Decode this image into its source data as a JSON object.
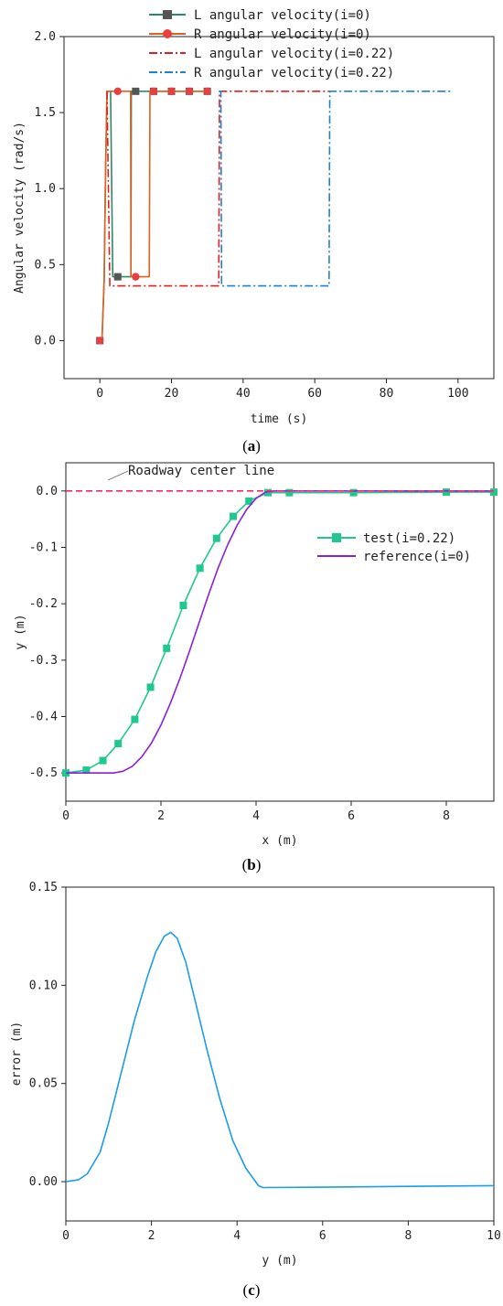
{
  "chart_data": [
    {
      "type": "line",
      "caption": "(a)",
      "xlabel": "time (s)",
      "ylabel": "Angular velocity (rad/s)",
      "xlim": [
        -10,
        110
      ],
      "ylim": [
        -0.25,
        2.0
      ],
      "xticks": [
        0,
        20,
        40,
        60,
        80,
        100
      ],
      "yticks": [
        0.0,
        0.5,
        1.0,
        1.5,
        2.0
      ],
      "ytick_labels": [
        "0.0",
        "0.5",
        "1.0",
        "1.5",
        "2.0"
      ],
      "legend_position": "top-center",
      "series": [
        {
          "name": "L angular velocity(i=0)",
          "color": "#2a8a6a",
          "dash": "solid",
          "marker": "square",
          "marker_color": "#555555",
          "x": [
            0,
            0.6,
            1.2,
            1.6,
            2.0,
            2.6,
            3.0,
            3.6,
            4.5,
            8.7,
            8.8,
            9.2,
            13,
            14.2,
            14.3,
            30
          ],
          "y": [
            0,
            0,
            0.4,
            1.1,
            1.64,
            1.64,
            1.64,
            0.42,
            0.42,
            0.42,
            1.64,
            1.64,
            1.64,
            1.64,
            1.64,
            1.64
          ],
          "marker_x": [
            0,
            5,
            10,
            15,
            20,
            25,
            30
          ],
          "marker_y": [
            0,
            0.42,
            1.64,
            1.64,
            1.64,
            1.64,
            1.64
          ]
        },
        {
          "name": "R angular velocity(i=0)",
          "color": "#e06020",
          "dash": "solid",
          "marker": "circle",
          "marker_color": "#e84040",
          "x": [
            0,
            0.6,
            1.2,
            1.6,
            2.0,
            2.6,
            8.6,
            8.7,
            9.2,
            13.8,
            14.0,
            14.2,
            30
          ],
          "y": [
            0,
            0,
            0.4,
            1.1,
            1.64,
            1.64,
            1.64,
            0.42,
            0.42,
            0.42,
            1.64,
            1.64,
            1.64
          ],
          "marker_x": [
            0,
            5,
            10,
            15,
            20,
            25,
            30
          ],
          "marker_y": [
            0,
            1.64,
            0.42,
            1.64,
            1.64,
            1.64,
            1.64
          ]
        },
        {
          "name": "L angular velocity(i=0.22)",
          "color": "#e02020",
          "dash": "dashdot",
          "x": [
            2.0,
            2.8,
            33.2,
            33.4,
            33.6,
            64
          ],
          "y": [
            1.64,
            0.36,
            0.36,
            1.64,
            1.64,
            1.64
          ]
        },
        {
          "name": "R angular velocity(i=0.22)",
          "color": "#2080d0",
          "dash": "dashdot",
          "x": [
            33.2,
            33.8,
            34.0,
            64.0,
            64.2,
            98
          ],
          "y": [
            1.64,
            1.64,
            0.36,
            0.36,
            1.64,
            1.64
          ]
        }
      ]
    },
    {
      "type": "line",
      "caption": "(b)",
      "xlabel": "x (m)",
      "ylabel": "y (m)",
      "xlim": [
        0,
        9
      ],
      "ylim": [
        -0.55,
        0.05
      ],
      "xticks": [
        0,
        2,
        4,
        6,
        8
      ],
      "yticks": [
        0.0,
        -0.1,
        -0.2,
        -0.3,
        -0.4,
        -0.5
      ],
      "ytick_labels": [
        "0.0",
        "-0.1",
        "-0.2",
        "-0.3",
        "-0.4",
        "-0.5"
      ],
      "legend_position": "middle-right",
      "annotation": "Roadway center line",
      "series": [
        {
          "name": "test(i=0.22)",
          "color": "#20c890",
          "marker": "square",
          "x": [
            0,
            0.43,
            0.78,
            1.1,
            1.45,
            1.78,
            2.12,
            2.47,
            2.82,
            3.17,
            3.52,
            3.85,
            4.25,
            4.7,
            6.05,
            8.0,
            9.0
          ],
          "y": [
            -0.5,
            -0.495,
            -0.478,
            -0.448,
            -0.405,
            -0.348,
            -0.279,
            -0.203,
            -0.137,
            -0.084,
            -0.045,
            -0.018,
            -0.003,
            -0.003,
            -0.003,
            -0.002,
            -0.002
          ]
        },
        {
          "name": "reference(i=0)",
          "color": "#8a20d8",
          "x": [
            0,
            1.0,
            1.2,
            1.4,
            1.6,
            1.8,
            2.0,
            2.2,
            2.4,
            2.6,
            2.8,
            3.0,
            3.2,
            3.4,
            3.6,
            3.8,
            4.0,
            4.2,
            4.4,
            4.6,
            5.0,
            9.0
          ],
          "y": [
            -0.5,
            -0.5,
            -0.497,
            -0.488,
            -0.471,
            -0.447,
            -0.415,
            -0.376,
            -0.332,
            -0.284,
            -0.234,
            -0.184,
            -0.137,
            -0.096,
            -0.061,
            -0.033,
            -0.013,
            -0.002,
            0.0,
            0.0,
            0.0,
            0.0
          ]
        },
        {
          "name": "Roadway center line",
          "color": "#ff2070",
          "dash": "dashed",
          "x": [
            0,
            9
          ],
          "y": [
            0,
            0
          ]
        }
      ]
    },
    {
      "type": "line",
      "caption": "(c)",
      "xlabel": "y (m)",
      "ylabel": "error (m)",
      "xlim": [
        0,
        10
      ],
      "ylim": [
        -0.02,
        0.15
      ],
      "xticks": [
        0,
        2,
        4,
        6,
        8,
        10
      ],
      "yticks": [
        0.0,
        0.05,
        0.1,
        0.15
      ],
      "ytick_labels": [
        "0.00",
        "0.05",
        "0.10",
        "0.15"
      ],
      "series": [
        {
          "name": "",
          "color": "#1a9ee8",
          "x": [
            0,
            0.3,
            0.5,
            0.8,
            1.0,
            1.3,
            1.6,
            1.9,
            2.1,
            2.3,
            2.45,
            2.6,
            2.8,
            3.0,
            3.3,
            3.6,
            3.9,
            4.2,
            4.5,
            4.6,
            6.0,
            8.0,
            10.0
          ],
          "y": [
            0.0,
            0.001,
            0.004,
            0.015,
            0.03,
            0.056,
            0.082,
            0.104,
            0.117,
            0.125,
            0.127,
            0.124,
            0.112,
            0.094,
            0.067,
            0.042,
            0.021,
            0.007,
            -0.002,
            -0.003,
            -0.0028,
            -0.0024,
            -0.002
          ]
        }
      ]
    }
  ]
}
